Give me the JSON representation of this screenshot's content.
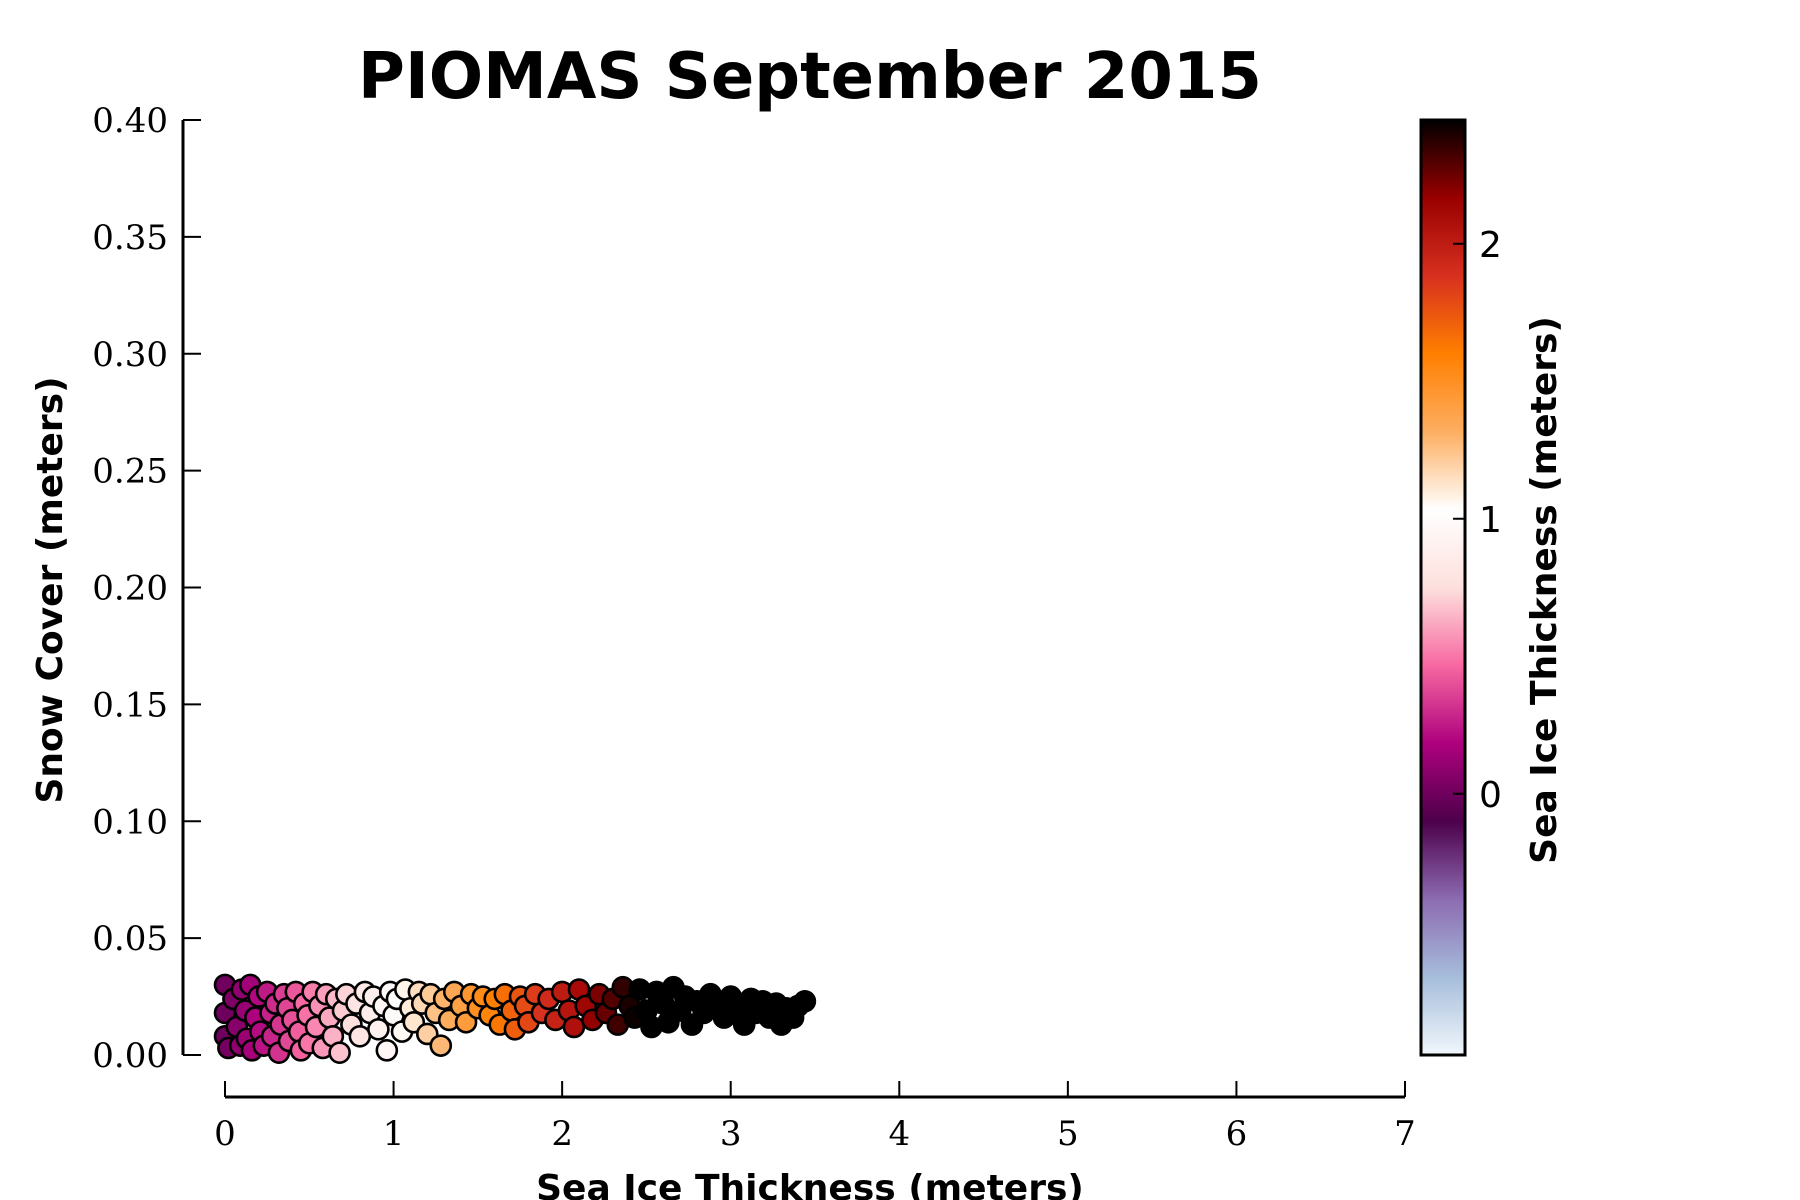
{
  "chart_data": {
    "type": "scatter",
    "title": "PIOMAS September 2015",
    "xlabel": "Sea Ice Thickness (meters)",
    "ylabel": "Snow Cover (meters)",
    "xlim": [
      0,
      7
    ],
    "ylim": [
      0,
      0.4
    ],
    "xticks": [
      0,
      1,
      2,
      3,
      4,
      5,
      6,
      7
    ],
    "xtick_labels": [
      "0",
      "1",
      "2",
      "3",
      "4",
      "5",
      "6",
      "7"
    ],
    "yticks": [
      0.0,
      0.05,
      0.1,
      0.15,
      0.2,
      0.25,
      0.3,
      0.35,
      0.4
    ],
    "ytick_labels": [
      "0.00",
      "0.05",
      "0.10",
      "0.15",
      "0.20",
      "0.25",
      "0.30",
      "0.35",
      "0.40"
    ],
    "grid": false,
    "colorbar": {
      "label": "Sea Ice Thickness (meters)",
      "range": [
        -0.95,
        2.45
      ],
      "ticks": [
        0,
        1,
        2
      ],
      "tick_labels": [
        "0",
        "1",
        "2"
      ],
      "stops": [
        "#f1f7fc",
        "#a6bddb",
        "#8c6bb1",
        "#4d004b",
        "#ae017e",
        "#f768a1",
        "#fde0dd",
        "#ffffff",
        "#fdae61",
        "#ff7f00",
        "#d7301f",
        "#990000",
        "#000000"
      ]
    },
    "points": [
      [
        0.0,
        0.03
      ],
      [
        0.0,
        0.018
      ],
      [
        0.0,
        0.008
      ],
      [
        0.02,
        0.003
      ],
      [
        0.05,
        0.024
      ],
      [
        0.07,
        0.012
      ],
      [
        0.09,
        0.004
      ],
      [
        0.1,
        0.028
      ],
      [
        0.12,
        0.019
      ],
      [
        0.13,
        0.007
      ],
      [
        0.15,
        0.03
      ],
      [
        0.16,
        0.002
      ],
      [
        0.18,
        0.016
      ],
      [
        0.2,
        0.025
      ],
      [
        0.21,
        0.01
      ],
      [
        0.23,
        0.004
      ],
      [
        0.25,
        0.027
      ],
      [
        0.27,
        0.018
      ],
      [
        0.28,
        0.008
      ],
      [
        0.3,
        0.022
      ],
      [
        0.32,
        0.001
      ],
      [
        0.33,
        0.013
      ],
      [
        0.35,
        0.026
      ],
      [
        0.37,
        0.02
      ],
      [
        0.38,
        0.006
      ],
      [
        0.4,
        0.015
      ],
      [
        0.42,
        0.027
      ],
      [
        0.44,
        0.01
      ],
      [
        0.45,
        0.002
      ],
      [
        0.47,
        0.022
      ],
      [
        0.49,
        0.017
      ],
      [
        0.5,
        0.005
      ],
      [
        0.52,
        0.027
      ],
      [
        0.54,
        0.012
      ],
      [
        0.56,
        0.021
      ],
      [
        0.58,
        0.003
      ],
      [
        0.6,
        0.026
      ],
      [
        0.62,
        0.016
      ],
      [
        0.64,
        0.008
      ],
      [
        0.66,
        0.024
      ],
      [
        0.68,
        0.001
      ],
      [
        0.7,
        0.019
      ],
      [
        0.72,
        0.026
      ],
      [
        0.75,
        0.013
      ],
      [
        0.78,
        0.022
      ],
      [
        0.8,
        0.008
      ],
      [
        0.83,
        0.027
      ],
      [
        0.86,
        0.018
      ],
      [
        0.88,
        0.025
      ],
      [
        0.91,
        0.011
      ],
      [
        0.94,
        0.021
      ],
      [
        0.96,
        0.002
      ],
      [
        0.98,
        0.027
      ],
      [
        1.0,
        0.017
      ],
      [
        1.02,
        0.024
      ],
      [
        1.05,
        0.01
      ],
      [
        1.07,
        0.028
      ],
      [
        1.1,
        0.02
      ],
      [
        1.12,
        0.014
      ],
      [
        1.15,
        0.027
      ],
      [
        1.17,
        0.022
      ],
      [
        1.2,
        0.009
      ],
      [
        1.22,
        0.026
      ],
      [
        1.25,
        0.018
      ],
      [
        1.28,
        0.004
      ],
      [
        1.3,
        0.024
      ],
      [
        1.33,
        0.015
      ],
      [
        1.36,
        0.027
      ],
      [
        1.4,
        0.021
      ],
      [
        1.43,
        0.014
      ],
      [
        1.46,
        0.026
      ],
      [
        1.5,
        0.02
      ],
      [
        1.53,
        0.025
      ],
      [
        1.57,
        0.017
      ],
      [
        1.6,
        0.024
      ],
      [
        1.63,
        0.013
      ],
      [
        1.66,
        0.026
      ],
      [
        1.7,
        0.019
      ],
      [
        1.72,
        0.011
      ],
      [
        1.75,
        0.025
      ],
      [
        1.78,
        0.021
      ],
      [
        1.8,
        0.014
      ],
      [
        1.84,
        0.026
      ],
      [
        1.88,
        0.018
      ],
      [
        1.92,
        0.024
      ],
      [
        1.96,
        0.015
      ],
      [
        2.0,
        0.027
      ],
      [
        2.04,
        0.019
      ],
      [
        2.07,
        0.012
      ],
      [
        2.1,
        0.028
      ],
      [
        2.14,
        0.021
      ],
      [
        2.18,
        0.015
      ],
      [
        2.22,
        0.026
      ],
      [
        2.26,
        0.018
      ],
      [
        2.3,
        0.024
      ],
      [
        2.33,
        0.013
      ],
      [
        2.36,
        0.029
      ],
      [
        2.4,
        0.021
      ],
      [
        2.43,
        0.016
      ],
      [
        2.46,
        0.028
      ],
      [
        2.5,
        0.019
      ],
      [
        2.53,
        0.012
      ],
      [
        2.56,
        0.027
      ],
      [
        2.6,
        0.022
      ],
      [
        2.63,
        0.014
      ],
      [
        2.66,
        0.029
      ],
      [
        2.7,
        0.019
      ],
      [
        2.73,
        0.025
      ],
      [
        2.77,
        0.013
      ],
      [
        2.8,
        0.023
      ],
      [
        2.84,
        0.018
      ],
      [
        2.88,
        0.026
      ],
      [
        2.92,
        0.021
      ],
      [
        2.96,
        0.016
      ],
      [
        3.0,
        0.025
      ],
      [
        3.04,
        0.02
      ],
      [
        3.08,
        0.013
      ],
      [
        3.12,
        0.024
      ],
      [
        3.15,
        0.018
      ],
      [
        3.19,
        0.023
      ],
      [
        3.23,
        0.016
      ],
      [
        3.27,
        0.022
      ],
      [
        3.3,
        0.013
      ],
      [
        3.33,
        0.02
      ],
      [
        3.37,
        0.016
      ],
      [
        3.4,
        0.021
      ],
      [
        3.44,
        0.023
      ]
    ]
  }
}
